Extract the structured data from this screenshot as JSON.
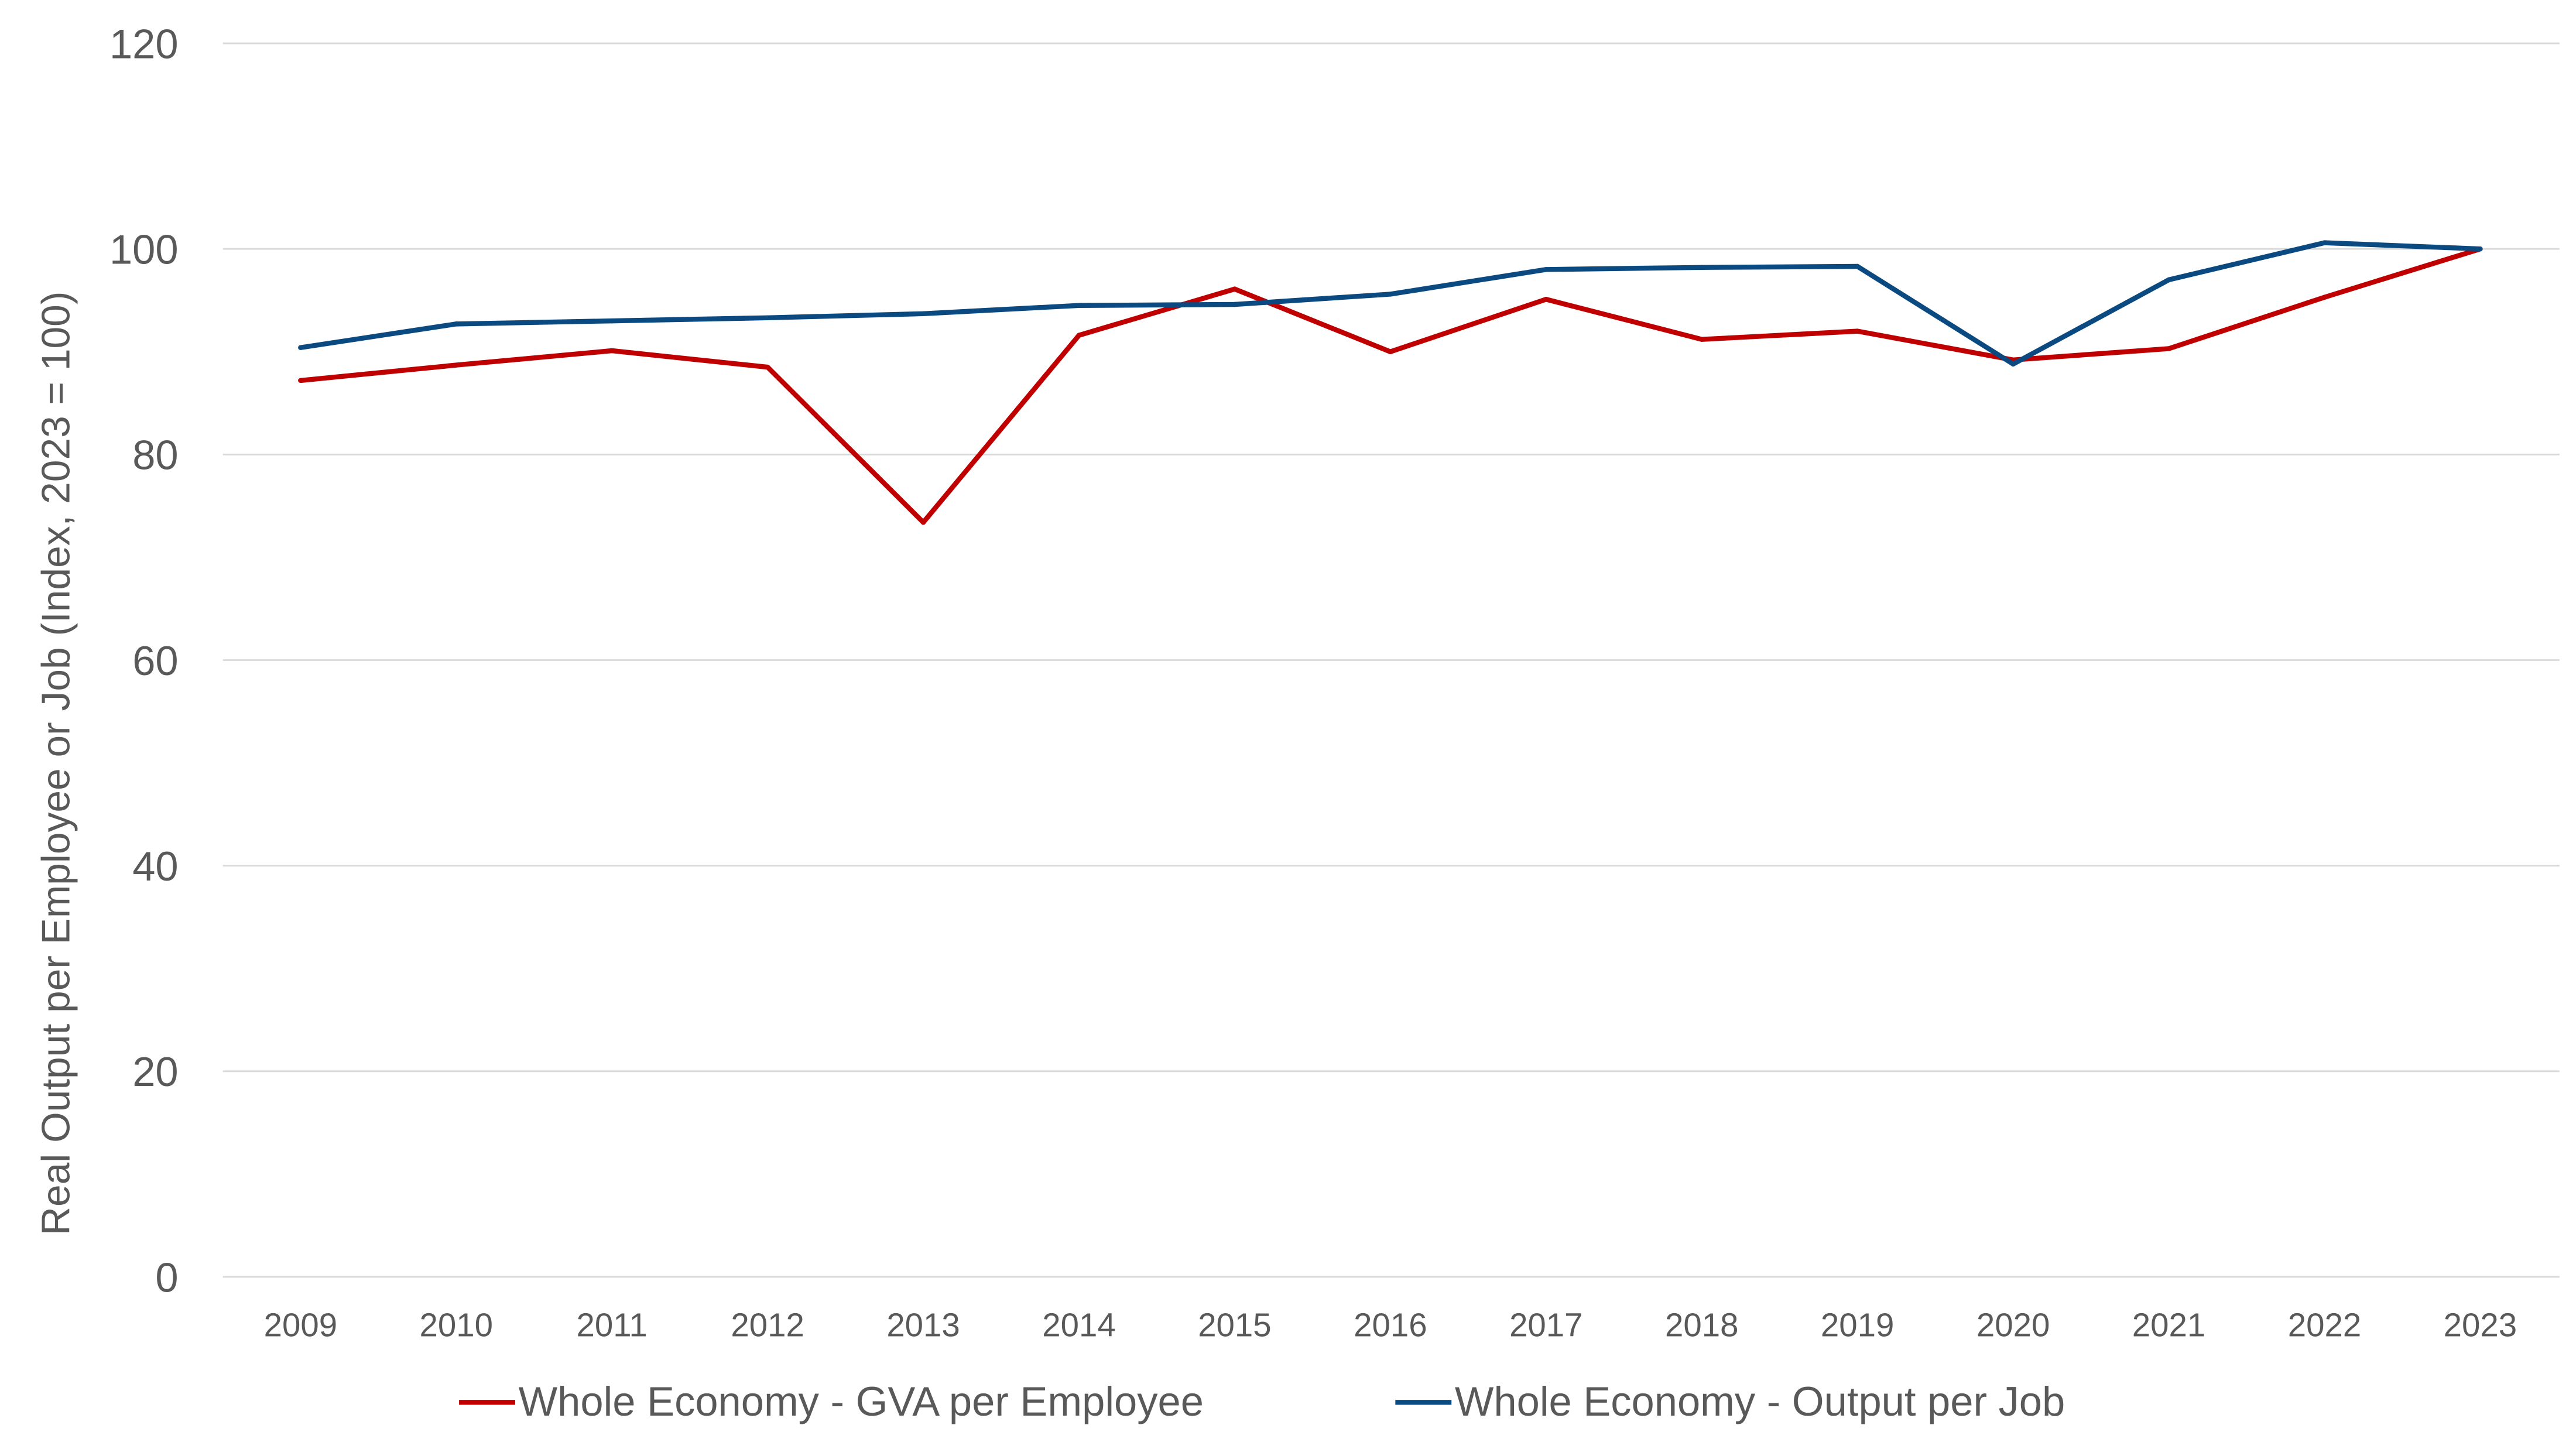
{
  "chart_data": {
    "type": "line",
    "title": "",
    "xlabel": "",
    "ylabel": "Real Output per Employee or Job (Index, 2023 = 100)",
    "ylim": [
      0,
      120
    ],
    "yticks": [
      "0",
      "20",
      "40",
      "60",
      "80",
      "100",
      "120"
    ],
    "grid": true,
    "legend_position": "bottom",
    "categories": [
      "2009",
      "2010",
      "2011",
      "2012",
      "2013",
      "2014",
      "2015",
      "2016",
      "2017",
      "2018",
      "2019",
      "2020",
      "2021",
      "2022",
      "2023"
    ],
    "series": [
      {
        "name": "Whole Economy - GVA per Employee",
        "color": "#C00000",
        "values": [
          87.2,
          88.7,
          90.1,
          88.5,
          73.4,
          91.6,
          96.1,
          90.0,
          95.1,
          91.2,
          92.0,
          89.2,
          90.3,
          95.3,
          100.0
        ]
      },
      {
        "name": "Whole Economy - Output per Job",
        "color": "#0B4A80",
        "values": [
          90.4,
          92.7,
          93.0,
          93.3,
          93.7,
          94.5,
          94.6,
          95.6,
          98.0,
          98.2,
          98.3,
          88.8,
          97.0,
          100.6,
          100.0
        ]
      }
    ]
  }
}
